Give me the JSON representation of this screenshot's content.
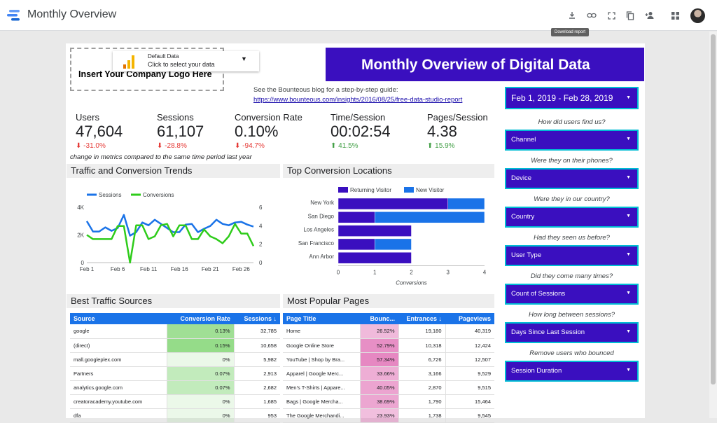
{
  "app": {
    "title": "Monthly Overview",
    "tooltip": "Download report"
  },
  "report": {
    "logo_placeholder": "Insert Your Company Logo Here",
    "datasource": {
      "line1": "Default Data",
      "line2": "Click to select your data"
    },
    "banner_title": "Monthly Overview of Digital Data",
    "blog_text": "See the Bounteous blog for a step-by-step guide:",
    "blog_link": "https://www.bounteous.com/insights/2016/08/25/free-data-studio-report",
    "kpis": [
      {
        "label": "Users",
        "value": "47,604",
        "change": "-31.0%",
        "dir": "down"
      },
      {
        "label": "Sessions",
        "value": "61,107",
        "change": "-28.8%",
        "dir": "down"
      },
      {
        "label": "Conversion Rate",
        "value": "0.10%",
        "change": "-94.7%",
        "dir": "down"
      },
      {
        "label": "Time/Session",
        "value": "00:02:54",
        "change": "41.5%",
        "dir": "up"
      },
      {
        "label": "Pages/Session",
        "value": "4.38",
        "change": "15.9%",
        "dir": "up"
      }
    ],
    "kpi_note": "change in metrics compared to the same time period last year",
    "sections": {
      "trends": "Traffic and Conversion Trends",
      "locations": "Top Conversion Locations",
      "sources": "Best Traffic Sources",
      "pages": "Most Popular Pages"
    },
    "date_range": "Feb 1, 2019 - Feb 28, 2019",
    "filters": [
      {
        "question": "How did users find us?",
        "label": "Channel"
      },
      {
        "question": "Were they on their phones?",
        "label": "Device"
      },
      {
        "question": "Were they in our country?",
        "label": "Country"
      },
      {
        "question": "Had they seen us before?",
        "label": "User Type"
      },
      {
        "question": "Did they come many times?",
        "label": "Count of Sessions"
      },
      {
        "question": "How long between sessions?",
        "label": "Days Since Last Session"
      },
      {
        "question": "Remove users who bounced",
        "label": "Session Duration"
      }
    ],
    "sources_table": {
      "headers": [
        "Source",
        "Conversion Rate",
        "Sessions ↓"
      ],
      "rows": [
        {
          "source": "google",
          "rate": "0.13%",
          "rate_pct": 0.13,
          "sessions": "32,785"
        },
        {
          "source": "(direct)",
          "rate": "0.15%",
          "rate_pct": 0.15,
          "sessions": "10,658"
        },
        {
          "source": "mall.googleplex.com",
          "rate": "0%",
          "rate_pct": 0,
          "sessions": "5,982"
        },
        {
          "source": "Partners",
          "rate": "0.07%",
          "rate_pct": 0.07,
          "sessions": "2,913"
        },
        {
          "source": "analytics.google.com",
          "rate": "0.07%",
          "rate_pct": 0.07,
          "sessions": "2,682"
        },
        {
          "source": "creatoracademy.youtube.com",
          "rate": "0%",
          "rate_pct": 0,
          "sessions": "1,685"
        },
        {
          "source": "dfa",
          "rate": "0%",
          "rate_pct": 0,
          "sessions": "953"
        }
      ]
    },
    "pages_table": {
      "headers": [
        "Page Title",
        "Bounc...",
        "Entrances ↓",
        "Pageviews"
      ],
      "rows": [
        {
          "title": "Home",
          "bounce": "26.52%",
          "bounce_pct": 26.52,
          "entrances": "19,180",
          "pageviews": "40,319"
        },
        {
          "title": "Google Online Store",
          "bounce": "52.79%",
          "bounce_pct": 52.79,
          "entrances": "10,318",
          "pageviews": "12,424"
        },
        {
          "title": "YouTube | Shop by Bra...",
          "bounce": "57.34%",
          "bounce_pct": 57.34,
          "entrances": "6,726",
          "pageviews": "12,507"
        },
        {
          "title": "Apparel | Google Merc...",
          "bounce": "33.66%",
          "bounce_pct": 33.66,
          "entrances": "3,166",
          "pageviews": "9,529"
        },
        {
          "title": "Men's T-Shirts | Appare...",
          "bounce": "40.05%",
          "bounce_pct": 40.05,
          "entrances": "2,870",
          "pageviews": "9,515"
        },
        {
          "title": "Bags | Google Mercha...",
          "bounce": "38.69%",
          "bounce_pct": 38.69,
          "entrances": "1,790",
          "pageviews": "15,464"
        },
        {
          "title": "The Google Merchandi...",
          "bounce": "23.93%",
          "bounce_pct": 23.93,
          "entrances": "1,738",
          "pageviews": "9,545"
        }
      ]
    },
    "colors": {
      "accent": "#3a0fbf",
      "blue": "#1a73e8",
      "green": "#2ecc1a",
      "cyan_border": "#00bcd4"
    },
    "icons": [
      "download-icon",
      "link-icon",
      "fullscreen-icon",
      "copy-icon",
      "share-icon",
      "apps-icon"
    ]
  },
  "chart_data": [
    {
      "type": "line",
      "title": "Traffic and Conversion Trends",
      "x_ticks": [
        "Feb 1",
        "Feb 6",
        "Feb 11",
        "Feb 16",
        "Feb 21",
        "Feb 26"
      ],
      "x": [
        1,
        2,
        3,
        4,
        5,
        6,
        7,
        8,
        9,
        10,
        11,
        12,
        13,
        14,
        15,
        16,
        17,
        18,
        19,
        20,
        21,
        22,
        23,
        24,
        25,
        26,
        27,
        28
      ],
      "y_left_ticks": [
        "0",
        "2K",
        "4K"
      ],
      "y_left_lim": [
        0,
        4000
      ],
      "y_right_ticks": [
        "0",
        "2",
        "4",
        "6"
      ],
      "y_right_lim": [
        0,
        6
      ],
      "legend_position": "top-left",
      "series": [
        {
          "name": "Sessions",
          "axis": "left",
          "color": "#1a73e8",
          "values": [
            3000,
            2250,
            2250,
            2550,
            2300,
            2500,
            3450,
            1950,
            2200,
            2900,
            2700,
            3100,
            2800,
            2500,
            2200,
            2200,
            2750,
            2800,
            2200,
            2450,
            2650,
            3100,
            2800,
            2700,
            2900,
            2950,
            2750,
            2600
          ]
        },
        {
          "name": "Conversions",
          "axis": "left",
          "color": "#2ecc1a",
          "values": [
            2000,
            1700,
            1700,
            1700,
            1700,
            2650,
            2650,
            0,
            2700,
            2700,
            1700,
            1900,
            2700,
            2800,
            1900,
            2700,
            2700,
            1700,
            1700,
            2400,
            1900,
            1700,
            1400,
            1900,
            2800,
            2100,
            2100,
            1200
          ]
        }
      ]
    },
    {
      "type": "bar",
      "orientation": "horizontal",
      "stacked": true,
      "title": "Top Conversion Locations",
      "categories": [
        "New York",
        "San Diego",
        "Los Angeles",
        "San Francisco",
        "Ann Arbor"
      ],
      "xlabel": "Conversions",
      "xlim": [
        0,
        4
      ],
      "x_ticks": [
        "0",
        "1",
        "2",
        "3",
        "4"
      ],
      "legend_position": "top",
      "series": [
        {
          "name": "Returning Visitor",
          "color": "#3a0fbf",
          "values": [
            3,
            1,
            2,
            1,
            2
          ]
        },
        {
          "name": "New Visitor",
          "color": "#1a73e8",
          "values": [
            1,
            3,
            0,
            1,
            0
          ]
        }
      ]
    }
  ]
}
